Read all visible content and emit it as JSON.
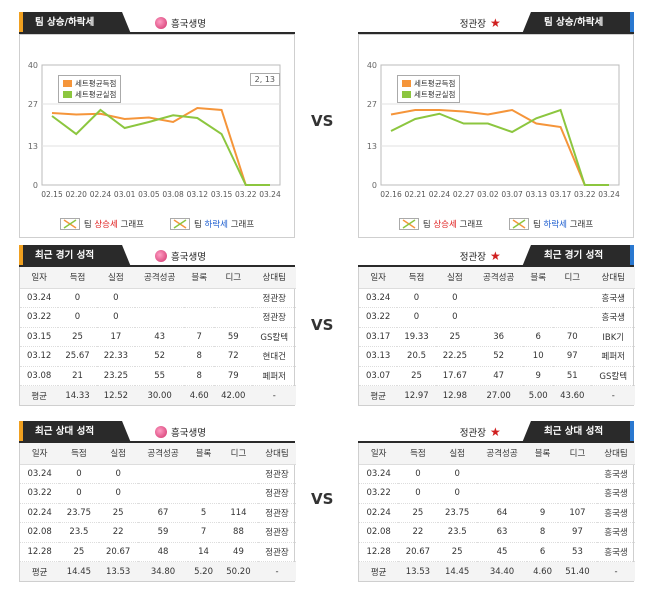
{
  "vs_label": "VS",
  "left": {
    "team": "흥국생명",
    "graph": {
      "title": "팀 상승/하락세",
      "corner": "2, 13",
      "yticks": [
        "40",
        "27",
        "13",
        "0"
      ],
      "xlabels": [
        "02.15",
        "02.20",
        "02.24",
        "03.01",
        "03.05",
        "03.08",
        "03.12",
        "03.15",
        "03.22",
        "03.24"
      ],
      "legend_score": "세트평균득점",
      "legend_loss": "세트평균실점",
      "up_prefix": "팀 ",
      "up_word": "상승세",
      "up_suffix": " 그래프",
      "down_prefix": "팀 ",
      "down_word": "하락세",
      "down_suffix": " 그래프"
    },
    "recent": {
      "title": "최근 경기 성적",
      "headers": [
        "일자",
        "득점",
        "실점",
        "공격성공",
        "블록",
        "디그",
        "상대팀"
      ],
      "rows": [
        [
          "03.24",
          "0",
          "0",
          "",
          "",
          "",
          "정관장"
        ],
        [
          "03.22",
          "0",
          "0",
          "",
          "",
          "",
          "정관장"
        ],
        [
          "03.15",
          "25",
          "17",
          "43",
          "7",
          "59",
          "GS칼텍"
        ],
        [
          "03.12",
          "25.67",
          "22.33",
          "52",
          "8",
          "72",
          "현대건"
        ],
        [
          "03.08",
          "21",
          "23.25",
          "55",
          "8",
          "79",
          "페퍼저"
        ]
      ],
      "avg": [
        "평균",
        "14.33",
        "12.52",
        "30.00",
        "4.60",
        "42.00",
        "-"
      ]
    },
    "h2h": {
      "title": "최근 상대 성적",
      "headers": [
        "일자",
        "득점",
        "실점",
        "공격성공",
        "블록",
        "디그",
        "상대팀"
      ],
      "rows": [
        [
          "03.24",
          "0",
          "0",
          "",
          "",
          "",
          "정관장"
        ],
        [
          "03.22",
          "0",
          "0",
          "",
          "",
          "",
          "정관장"
        ],
        [
          "02.24",
          "23.75",
          "25",
          "67",
          "5",
          "114",
          "정관장"
        ],
        [
          "02.08",
          "23.5",
          "22",
          "59",
          "7",
          "88",
          "정관장"
        ],
        [
          "12.28",
          "25",
          "20.67",
          "48",
          "14",
          "49",
          "정관장"
        ]
      ],
      "avg": [
        "평균",
        "14.45",
        "13.53",
        "34.80",
        "5.20",
        "50.20",
        "-"
      ]
    }
  },
  "right": {
    "team": "정관장",
    "graph": {
      "title": "팀 상승/하락세",
      "yticks": [
        "40",
        "27",
        "13",
        "0"
      ],
      "xlabels": [
        "02.16",
        "02.21",
        "02.24",
        "02.27",
        "03.02",
        "03.07",
        "03.13",
        "03.17",
        "03.22",
        "03.24"
      ],
      "legend_score": "세트평균득점",
      "legend_loss": "세트평균실점",
      "up_prefix": "팀 ",
      "up_word": "상승세",
      "up_suffix": " 그래프",
      "down_prefix": "팀 ",
      "down_word": "하락세",
      "down_suffix": " 그래프"
    },
    "recent": {
      "title": "최근 경기 성적",
      "headers": [
        "일자",
        "득점",
        "실점",
        "공격성공",
        "블록",
        "디그",
        "상대팀"
      ],
      "rows": [
        [
          "03.24",
          "0",
          "0",
          "",
          "",
          "",
          "흥국생"
        ],
        [
          "03.22",
          "0",
          "0",
          "",
          "",
          "",
          "흥국생"
        ],
        [
          "03.17",
          "19.33",
          "25",
          "36",
          "6",
          "70",
          "IBK기"
        ],
        [
          "03.13",
          "20.5",
          "22.25",
          "52",
          "10",
          "97",
          "페퍼저"
        ],
        [
          "03.07",
          "25",
          "17.67",
          "47",
          "9",
          "51",
          "GS칼텍"
        ]
      ],
      "avg": [
        "평균",
        "12.97",
        "12.98",
        "27.00",
        "5.00",
        "43.60",
        "-"
      ]
    },
    "h2h": {
      "title": "최근 상대 성적",
      "headers": [
        "일자",
        "득점",
        "실점",
        "공격성공",
        "블록",
        "디그",
        "상대팀"
      ],
      "rows": [
        [
          "03.24",
          "0",
          "0",
          "",
          "",
          "",
          "흥국생"
        ],
        [
          "03.22",
          "0",
          "0",
          "",
          "",
          "",
          "흥국생"
        ],
        [
          "02.24",
          "25",
          "23.75",
          "64",
          "9",
          "107",
          "흥국생"
        ],
        [
          "02.08",
          "22",
          "23.5",
          "63",
          "8",
          "97",
          "흥국생"
        ],
        [
          "12.28",
          "20.67",
          "25",
          "45",
          "6",
          "53",
          "흥국생"
        ]
      ],
      "avg": [
        "평균",
        "13.53",
        "14.45",
        "34.40",
        "4.60",
        "51.40",
        "-"
      ]
    }
  },
  "chart_data": [
    {
      "type": "line",
      "x": [
        "02.15",
        "02.20",
        "02.24",
        "03.01",
        "03.05",
        "03.08",
        "03.12",
        "03.15",
        "03.22",
        "03.24"
      ],
      "ylim": [
        0,
        40
      ],
      "series": [
        {
          "name": "세트평균득점",
          "color": "#f5953a",
          "values": [
            24,
            23.5,
            23.75,
            22,
            22.5,
            21,
            25.67,
            25,
            0,
            0
          ]
        },
        {
          "name": "세트평균실점",
          "color": "#8cc63f",
          "values": [
            23,
            17,
            25,
            19,
            21,
            23.25,
            22.33,
            17,
            0,
            0
          ]
        }
      ]
    },
    {
      "type": "line",
      "x": [
        "02.16",
        "02.21",
        "02.24",
        "02.27",
        "03.02",
        "03.07",
        "03.13",
        "03.17",
        "03.22",
        "03.24"
      ],
      "ylim": [
        0,
        40
      ],
      "series": [
        {
          "name": "세트평균득점",
          "color": "#f5953a",
          "values": [
            23.5,
            25,
            25,
            24.5,
            23.5,
            25,
            20.5,
            19.33,
            0,
            0
          ]
        },
        {
          "name": "세트평균실점",
          "color": "#8cc63f",
          "values": [
            18,
            22,
            23.75,
            20.5,
            20.5,
            17.67,
            22.25,
            25,
            0,
            0
          ]
        }
      ]
    }
  ]
}
